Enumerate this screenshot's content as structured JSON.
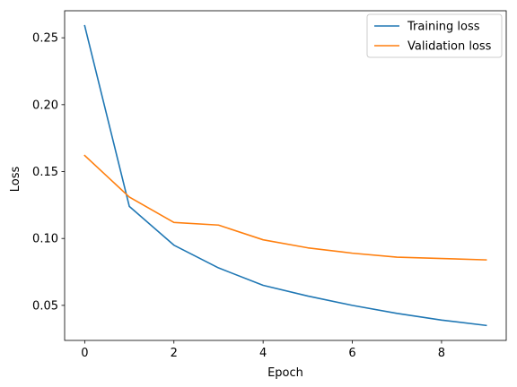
{
  "chart_data": {
    "type": "line",
    "title": "",
    "xlabel": "Epoch",
    "ylabel": "Loss",
    "x": [
      0,
      1,
      2,
      3,
      4,
      5,
      6,
      7,
      8,
      9
    ],
    "series": [
      {
        "name": "Training loss",
        "color": "#1f77b4",
        "values": [
          0.259,
          0.124,
          0.095,
          0.078,
          0.065,
          0.057,
          0.05,
          0.044,
          0.039,
          0.035
        ]
      },
      {
        "name": "Validation loss",
        "color": "#ff7f0e",
        "values": [
          0.162,
          0.131,
          0.112,
          0.11,
          0.099,
          0.093,
          0.089,
          0.086,
          0.085,
          0.084
        ]
      }
    ],
    "xlim": [
      -0.45,
      9.45
    ],
    "ylim": [
      0.0238,
      0.2702
    ],
    "xticks": [
      0,
      2,
      4,
      6,
      8
    ],
    "xtick_labels": [
      "0",
      "2",
      "4",
      "6",
      "8"
    ],
    "yticks": [
      0.05,
      0.1,
      0.15,
      0.2,
      0.25
    ],
    "ytick_labels": [
      "0.05",
      "0.10",
      "0.15",
      "0.20",
      "0.25"
    ],
    "grid": false,
    "legend_position": "upper right"
  }
}
